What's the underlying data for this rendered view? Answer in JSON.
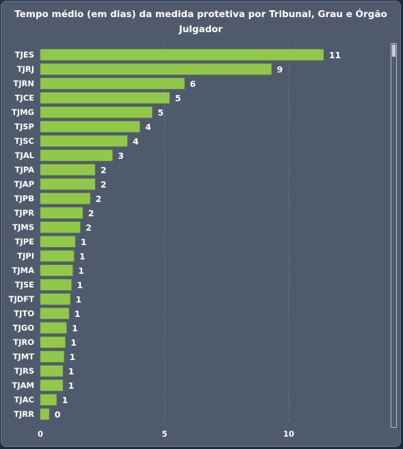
{
  "chart_data": {
    "type": "bar",
    "orientation": "horizontal",
    "title": "Tempo médio (em dias) da medida protetiva por Tribunal, Grau e Órgão Julgador",
    "xlabel": "",
    "ylabel": "",
    "categories": [
      "TJES",
      "TJRJ",
      "TJRN",
      "TJCE",
      "TJMG",
      "TJSP",
      "TJSC",
      "TJAL",
      "TJPA",
      "TJAP",
      "TJPB",
      "TJPR",
      "TJMS",
      "TJPE",
      "TJPI",
      "TJMA",
      "TJSE",
      "TJDFT",
      "TJTO",
      "TJGO",
      "TJRO",
      "TJMT",
      "TJRS",
      "TJAM",
      "TJAC",
      "TJRR"
    ],
    "values": [
      11.4,
      9.3,
      5.8,
      5.2,
      4.5,
      4.0,
      3.5,
      2.9,
      2.2,
      2.2,
      2.0,
      1.7,
      1.6,
      1.4,
      1.35,
      1.3,
      1.25,
      1.2,
      1.15,
      1.05,
      1.0,
      0.95,
      0.9,
      0.9,
      0.65,
      0.35
    ],
    "data_labels": [
      "11",
      "9",
      "6",
      "5",
      "5",
      "4",
      "4",
      "3",
      "2",
      "2",
      "2",
      "2",
      "2",
      "1",
      "1",
      "1",
      "1",
      "1",
      "1",
      "1",
      "1",
      "1",
      "1",
      "1",
      "1",
      "0"
    ],
    "xlim": [
      0,
      14
    ],
    "xticks": [
      0,
      5,
      10
    ],
    "grid": "vertical-dotted",
    "legend": "none"
  },
  "colors": {
    "bar": "#92c84a",
    "background": "#4f5b6d",
    "gridline": "#9aa4b2",
    "text": "#ffffff"
  }
}
